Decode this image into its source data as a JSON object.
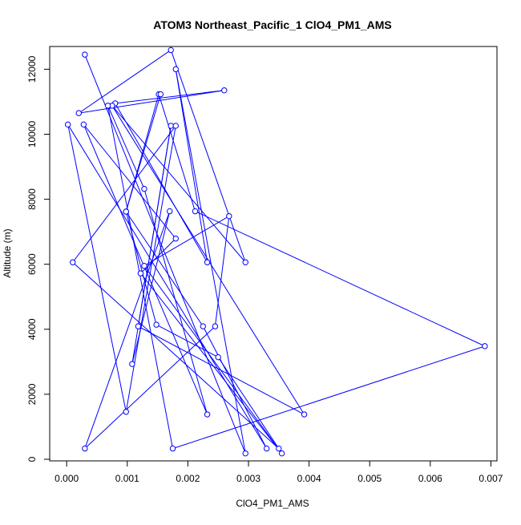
{
  "chart_data": {
    "type": "line",
    "title": "ATOM3 Northeast_Pacific_1 ClO4_PM1_AMS",
    "xlabel": "ClO4_PM1_AMS",
    "ylabel": "Altitude (m)",
    "xlim": [
      -0.00028,
      0.0071
    ],
    "ylim": [
      -50,
      12700
    ],
    "x_ticks": [
      0.0,
      0.001,
      0.002,
      0.003,
      0.004,
      0.005,
      0.006,
      0.007
    ],
    "x_tick_labels": [
      "0.000",
      "0.001",
      "0.002",
      "0.003",
      "0.004",
      "0.005",
      "0.006",
      "0.007"
    ],
    "y_ticks": [
      0,
      2000,
      4000,
      6000,
      8000,
      10000,
      12000
    ],
    "y_tick_labels": [
      "0",
      "2000",
      "4000",
      "6000",
      "8000",
      "10000",
      "12000"
    ],
    "grid": false,
    "series_color": "#0000ff",
    "series": [
      {
        "x": [
          0.0003,
          0.00295,
          0.0018,
          0.00232,
          0.0008,
          0.0026,
          0.0002,
          0.00172,
          0.00295,
          0.00075,
          0.00392,
          0.00118,
          0.00172,
          0.00108,
          0.0017,
          0.0003,
          0.00245,
          0.00268,
          0.00128,
          0.00355,
          0.00122,
          0.0018,
          0.00028,
          0.00232,
          0.00128,
          0.00068,
          0.00175,
          0.0069,
          0.00212,
          0.00152,
          0.00098,
          0.00148,
          0.0025,
          0.0035,
          0.0001,
          0.0018,
          0.00098,
          2e-05,
          0.0033,
          0.00225,
          0.00098,
          0.00155
        ],
        "y": [
          12450,
          180,
          12000,
          6060,
          10950,
          11350,
          10650,
          12590,
          6060,
          10880,
          1380,
          4090,
          10260,
          2930,
          7630,
          330,
          4090,
          7480,
          5950,
          180,
          5720,
          6790,
          10300,
          1380,
          8320,
          10880,
          330,
          3480,
          7630,
          11230,
          7620,
          4140,
          3140,
          330,
          6060,
          10260,
          1460,
          10300,
          330,
          4090,
          7620,
          11230
        ]
      }
    ]
  }
}
